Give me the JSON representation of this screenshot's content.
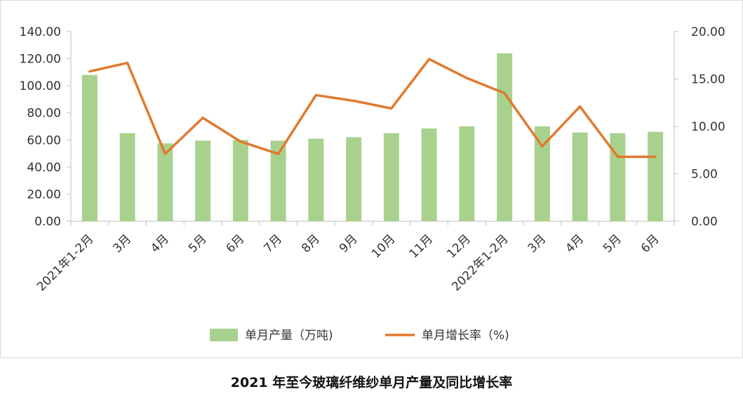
{
  "chart_data": {
    "type": "bar+line",
    "title": "2021 年至今玻璃纤维纱单月产量及同比增长率",
    "categories": [
      "2021年1-2月",
      "3月",
      "4月",
      "5月",
      "6月",
      "7月",
      "8月",
      "9月",
      "10月",
      "11月",
      "12月",
      "2022年1-2月",
      "3月",
      "4月",
      "5月",
      "6月"
    ],
    "series": [
      {
        "name": "单月产量（万吨)",
        "type": "bar",
        "axis": "left",
        "color": "#a9d18e",
        "values": [
          108.0,
          65.0,
          57.5,
          59.5,
          60.0,
          59.5,
          61.0,
          62.0,
          65.0,
          68.5,
          70.0,
          124.0,
          70.0,
          65.5,
          65.0,
          66.0
        ]
      },
      {
        "name": "单月增长率（%)",
        "type": "line",
        "axis": "right",
        "color": "#e07a2e",
        "values": [
          15.8,
          16.7,
          7.1,
          10.9,
          8.4,
          7.1,
          13.3,
          12.7,
          11.9,
          17.1,
          15.1,
          13.5,
          7.9,
          12.1,
          6.8,
          6.8
        ]
      }
    ],
    "y_left": {
      "min": 0,
      "max": 140,
      "ticks": [
        "0.00",
        "20.00",
        "40.00",
        "60.00",
        "80.00",
        "100.00",
        "120.00",
        "140.00"
      ]
    },
    "y_right": {
      "min": 0,
      "max": 20,
      "ticks": [
        "0.00",
        "5.00",
        "10.00",
        "15.00",
        "20.00"
      ]
    },
    "legend_position": "bottom",
    "grid": false
  }
}
